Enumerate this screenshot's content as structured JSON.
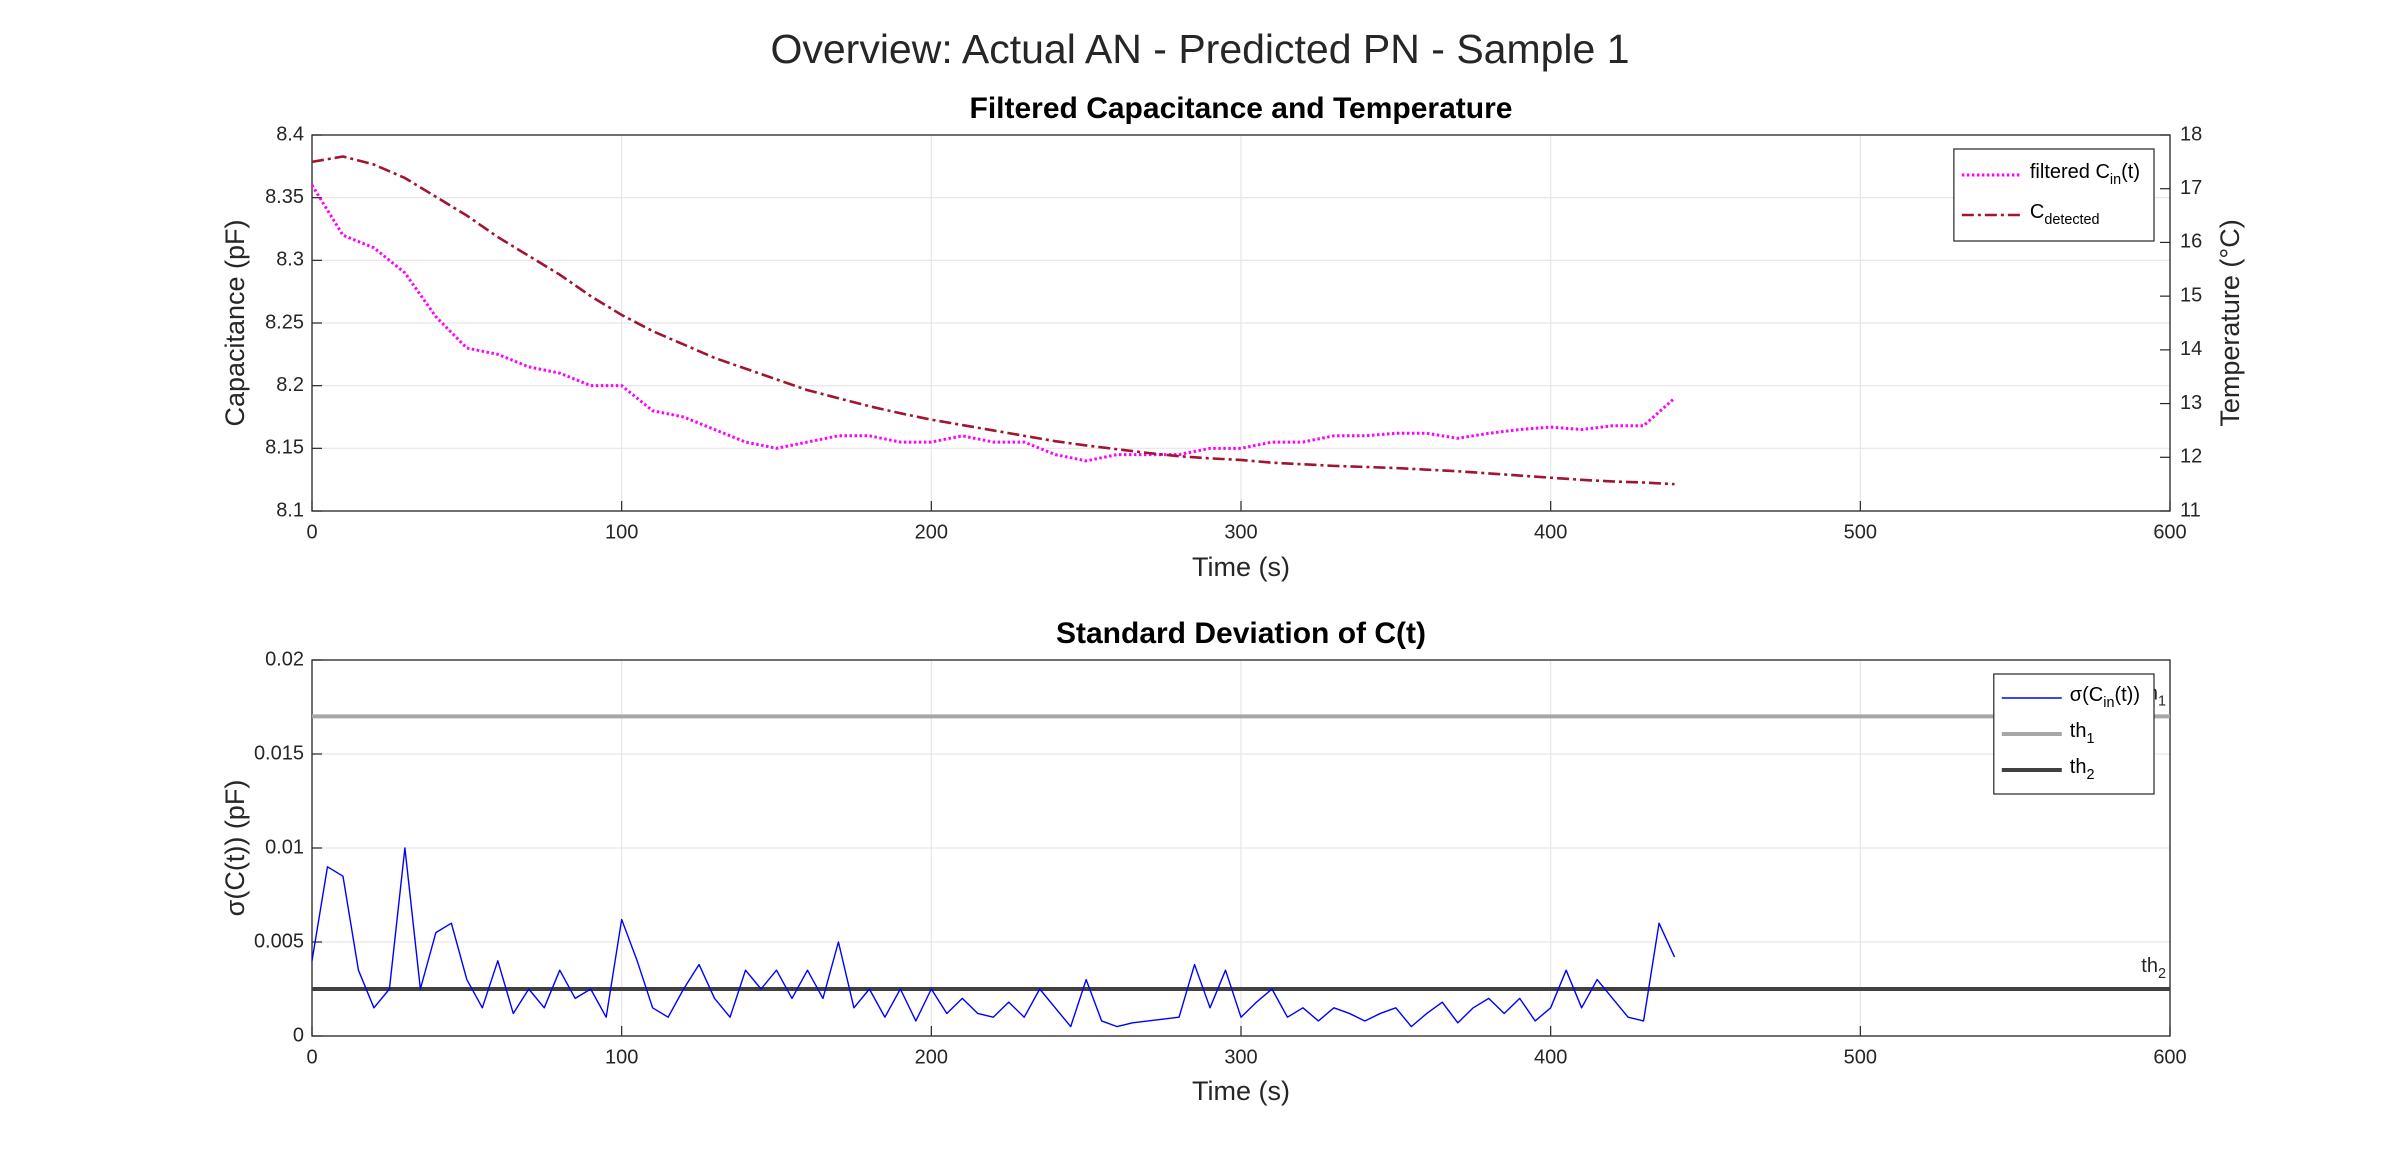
{
  "title": "Overview: Actual AN - Predicted PN - Sample 1",
  "chart_data": [
    {
      "type": "line",
      "title": "Filtered Capacitance and Temperature",
      "x_label": "Time (s)",
      "y_label": "Capacitance (pF)",
      "y2_label": "Temperature (°C)",
      "x": [
        0,
        10,
        20,
        30,
        40,
        50,
        60,
        70,
        80,
        90,
        100,
        110,
        120,
        130,
        140,
        150,
        160,
        170,
        180,
        190,
        200,
        210,
        220,
        230,
        240,
        250,
        260,
        270,
        280,
        290,
        300,
        310,
        320,
        330,
        340,
        350,
        360,
        370,
        380,
        390,
        400,
        410,
        420,
        430,
        440
      ],
      "series": [
        {
          "name": "filtered C_{in}(t)",
          "color": "#ff00ff",
          "style": "dotted",
          "values": [
            8.36,
            8.32,
            8.31,
            8.29,
            8.255,
            8.23,
            8.225,
            8.215,
            8.21,
            8.2,
            8.2,
            8.18,
            8.175,
            8.165,
            8.155,
            8.15,
            8.155,
            8.16,
            8.16,
            8.155,
            8.155,
            8.16,
            8.155,
            8.155,
            8.145,
            8.14,
            8.145,
            8.145,
            8.145,
            8.15,
            8.15,
            8.155,
            8.155,
            8.16,
            8.16,
            8.162,
            8.162,
            8.158,
            8.162,
            8.165,
            8.167,
            8.165,
            8.168,
            8.168,
            8.19
          ]
        },
        {
          "name": "C_{detected}",
          "color": "#a2142f",
          "style": "dashdot",
          "axis": "y2",
          "values": [
            17.5,
            17.6,
            17.45,
            17.2,
            16.85,
            16.5,
            16.1,
            15.75,
            15.4,
            15.0,
            14.65,
            14.35,
            14.1,
            13.85,
            13.65,
            13.45,
            13.25,
            13.1,
            12.95,
            12.82,
            12.7,
            12.6,
            12.5,
            12.4,
            12.3,
            12.22,
            12.15,
            12.08,
            12.02,
            11.98,
            11.95,
            11.9,
            11.87,
            11.84,
            11.82,
            11.8,
            11.77,
            11.74,
            11.7,
            11.66,
            11.62,
            11.58,
            11.55,
            11.53,
            11.5
          ]
        }
      ],
      "xlim": [
        0,
        600
      ],
      "xticks": [
        0,
        100,
        200,
        300,
        400,
        500,
        600
      ],
      "ylim": [
        8.1,
        8.4
      ],
      "yticks": [
        8.1,
        8.15,
        8.2,
        8.25,
        8.3,
        8.35,
        8.4
      ],
      "y2lim": [
        11,
        18
      ],
      "y2ticks": [
        11,
        12,
        13,
        14,
        15,
        16,
        17,
        18
      ],
      "grid": true,
      "legend": "top-right"
    },
    {
      "type": "line",
      "title": "Standard Deviation of C(t)",
      "x_label": "Time (s)",
      "y_label": "σ(C(t)) (pF)",
      "x": [
        0,
        5,
        10,
        15,
        20,
        25,
        30,
        35,
        40,
        45,
        50,
        55,
        60,
        65,
        70,
        75,
        80,
        85,
        90,
        95,
        100,
        105,
        110,
        115,
        120,
        125,
        130,
        135,
        140,
        145,
        150,
        155,
        160,
        165,
        170,
        175,
        180,
        185,
        190,
        195,
        200,
        205,
        210,
        215,
        220,
        225,
        230,
        235,
        240,
        245,
        250,
        255,
        260,
        265,
        270,
        275,
        280,
        285,
        290,
        295,
        300,
        305,
        310,
        315,
        320,
        325,
        330,
        335,
        340,
        345,
        350,
        355,
        360,
        365,
        370,
        375,
        380,
        385,
        390,
        395,
        400,
        405,
        410,
        415,
        420,
        425,
        430,
        435,
        440
      ],
      "series": [
        {
          "name": "σ(C_{in}(t))",
          "color": "#0000ff",
          "style": "solid",
          "values": [
            0.004,
            0.009,
            0.0085,
            0.0035,
            0.0015,
            0.0025,
            0.01,
            0.0025,
            0.0055,
            0.006,
            0.003,
            0.0015,
            0.004,
            0.0012,
            0.0025,
            0.0015,
            0.0035,
            0.002,
            0.0025,
            0.001,
            0.0062,
            0.004,
            0.0015,
            0.001,
            0.0025,
            0.0038,
            0.002,
            0.001,
            0.0035,
            0.0025,
            0.0035,
            0.002,
            0.0035,
            0.002,
            0.005,
            0.0015,
            0.0025,
            0.001,
            0.0025,
            0.0008,
            0.0025,
            0.0012,
            0.002,
            0.0012,
            0.001,
            0.0018,
            0.001,
            0.0025,
            0.0015,
            0.0005,
            0.003,
            0.0008,
            0.0005,
            0.0007,
            0.0008,
            0.0009,
            0.001,
            0.0038,
            0.0015,
            0.0035,
            0.001,
            0.0018,
            0.0025,
            0.001,
            0.0015,
            0.0008,
            0.0015,
            0.0012,
            0.0008,
            0.0012,
            0.0015,
            0.0005,
            0.0012,
            0.0018,
            0.0007,
            0.0015,
            0.002,
            0.0012,
            0.002,
            0.0008,
            0.0015,
            0.0035,
            0.0015,
            0.003,
            0.002,
            0.001,
            0.0008,
            0.006,
            0.0042
          ]
        }
      ],
      "thresholds": [
        {
          "name": "th_{1}",
          "value": 0.017,
          "color": "#a6a6a6"
        },
        {
          "name": "th_{2}",
          "value": 0.0025,
          "color": "#404040"
        }
      ],
      "annotations": [
        "th_{1}",
        "th_{2}"
      ],
      "xlim": [
        0,
        600
      ],
      "xticks": [
        0,
        100,
        200,
        300,
        400,
        500,
        600
      ],
      "ylim": [
        0,
        0.02
      ],
      "yticks": [
        0,
        0.005,
        0.01,
        0.015,
        0.02
      ],
      "grid": true,
      "legend": "top-right"
    }
  ]
}
